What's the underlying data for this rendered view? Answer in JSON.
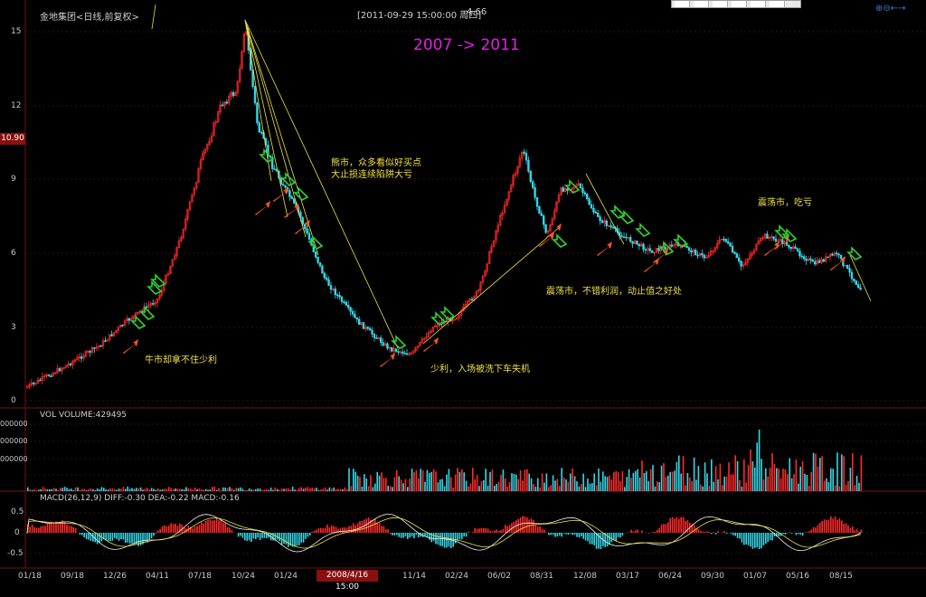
{
  "header": {
    "stock_title": "金地集团<日线,前复权>",
    "datetime": "[2011-09-29  15:00:00 周四]",
    "price": "4.66"
  },
  "banner": "2007 -> 2011",
  "annotations": {
    "bull": "牛市却拿不住少利",
    "bear_line1": "熊市，众多看似好买点",
    "bear_line2": "大止损连续陷阱大亏",
    "bottom": "少利，入场被洗下车失机",
    "range_right": "震荡市，不错利润，动止值之好处",
    "range_loss": "震荡市，吃亏"
  },
  "price_axis": {
    "ticks": [
      "15",
      "12",
      "9",
      "6",
      "3",
      "0"
    ],
    "current_price_label": "10.90"
  },
  "volume_panel": {
    "label": "VOL  VOLUME:429495",
    "tick_labels": [
      "000000",
      "000000",
      "000000"
    ]
  },
  "macd_panel": {
    "label": "MACD(26,12,9)  DIFF:-0.30  DEA:-0.22  MACD:-0.16",
    "ticks": [
      "0.5",
      "0",
      "-0.5"
    ]
  },
  "time_axis": {
    "ticks": [
      "01/18",
      "09/18",
      "12/26",
      "04/11",
      "07/18",
      "10/24",
      "01/24",
      "11/14",
      "02/24",
      "06/02",
      "08/31",
      "12/08",
      "03/17",
      "06/24",
      "09/30",
      "01/07",
      "05/16",
      "08/15"
    ],
    "cursor_label": "2008/4/16 15:00"
  },
  "colors": {
    "up": "#ff2a2a",
    "down": "#35d6e6",
    "annotation": "#f0e040",
    "banner": "#e020e0",
    "buy_arrow": "#ff5a1e",
    "sell_arrow": "#30d030"
  },
  "icons": [
    "zoom-in-icon",
    "zoom-out-icon",
    "arrow-left-icon",
    "arrow-right-icon"
  ]
}
